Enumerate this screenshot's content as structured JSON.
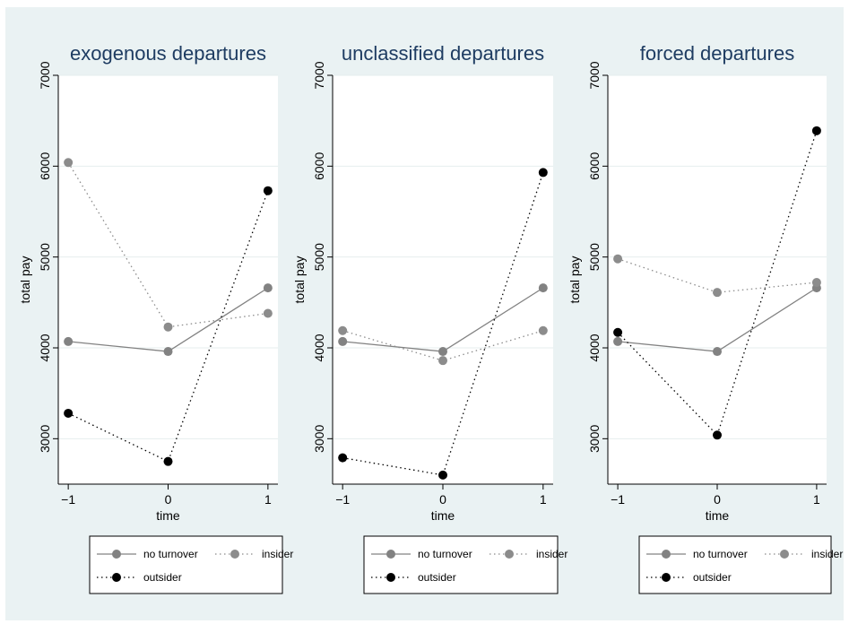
{
  "colors": {
    "outer_background": "#eaf2f3",
    "plot_background": "#ffffff",
    "title_color": "#1e3c62",
    "gridline": "#e6eeee",
    "no_turnover": "#828282",
    "insider": "#8c8c8c",
    "outsider": "#000000"
  },
  "chart_data": [
    {
      "type": "line",
      "title": "exogenous departures",
      "xlabel": "time",
      "ylabel": "total pay",
      "x": [
        -1,
        0,
        1
      ],
      "xlim": [
        -1.1,
        1.1
      ],
      "ylim": [
        2500,
        7000
      ],
      "xticks": [
        "−1",
        "0",
        "1"
      ],
      "yticks": [
        "3000",
        "4000",
        "5000",
        "6000",
        "7000"
      ],
      "grid": true,
      "legend_placement": "bottom",
      "series": [
        {
          "name": "no turnover",
          "values": [
            4070,
            3960,
            4660
          ],
          "style": "solid"
        },
        {
          "name": "insider",
          "values": [
            6040,
            4230,
            4380
          ],
          "style": "dotted"
        },
        {
          "name": "outsider",
          "values": [
            3280,
            2750,
            5730
          ],
          "style": "dotted"
        }
      ]
    },
    {
      "type": "line",
      "title": "unclassified departures",
      "xlabel": "time",
      "ylabel": "total pay",
      "x": [
        -1,
        0,
        1
      ],
      "xlim": [
        -1.1,
        1.1
      ],
      "ylim": [
        2500,
        7000
      ],
      "xticks": [
        "−1",
        "0",
        "1"
      ],
      "yticks": [
        "3000",
        "4000",
        "5000",
        "6000",
        "7000"
      ],
      "grid": true,
      "legend_placement": "bottom",
      "series": [
        {
          "name": "no turnover",
          "values": [
            4070,
            3960,
            4660
          ],
          "style": "solid"
        },
        {
          "name": "insider",
          "values": [
            4190,
            3860,
            4190
          ],
          "style": "dotted"
        },
        {
          "name": "outsider",
          "values": [
            2790,
            2600,
            5930
          ],
          "style": "dotted"
        }
      ]
    },
    {
      "type": "line",
      "title": "forced departures",
      "xlabel": "time",
      "ylabel": "total pay",
      "x": [
        -1,
        0,
        1
      ],
      "xlim": [
        -1.1,
        1.1
      ],
      "ylim": [
        2500,
        7000
      ],
      "xticks": [
        "−1",
        "0",
        "1"
      ],
      "yticks": [
        "3000",
        "4000",
        "5000",
        "6000",
        "7000"
      ],
      "grid": true,
      "legend_placement": "bottom",
      "series": [
        {
          "name": "no turnover",
          "values": [
            4070,
            3960,
            4660
          ],
          "style": "solid"
        },
        {
          "name": "insider",
          "values": [
            4980,
            4610,
            4720
          ],
          "style": "dotted"
        },
        {
          "name": "outsider",
          "values": [
            4170,
            3040,
            6390
          ],
          "style": "dotted"
        }
      ]
    }
  ]
}
